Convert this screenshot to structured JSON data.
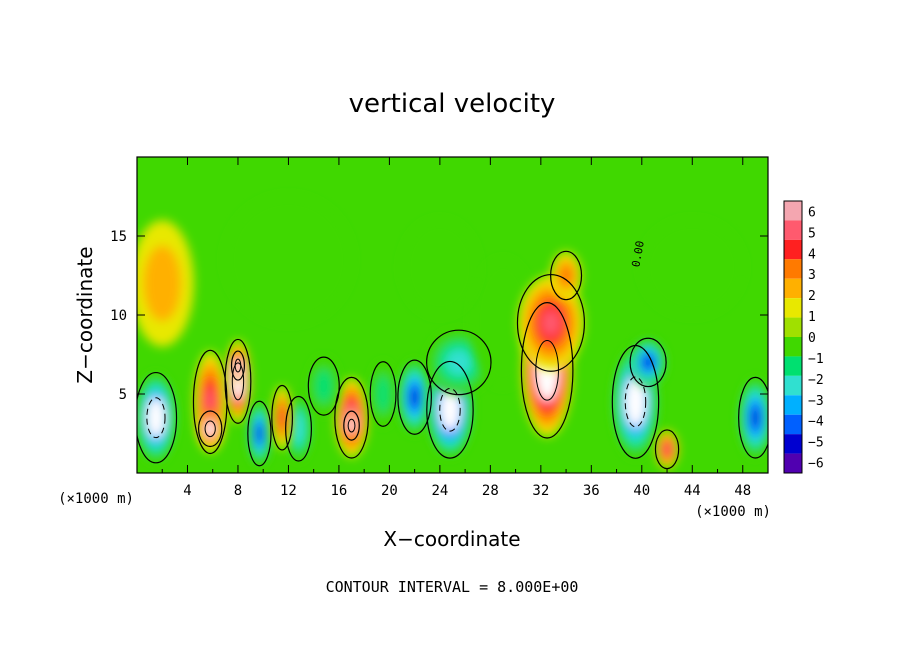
{
  "chart_data": {
    "type": "heatmap",
    "title": "vertical velocity",
    "xlabel": "X−coordinate",
    "ylabel": "Z−coordinate",
    "x_unit": "(×1000 m)",
    "xlim": [
      0,
      50
    ],
    "ylim": [
      0,
      20
    ],
    "x_ticks": [
      4,
      8,
      12,
      16,
      20,
      24,
      28,
      32,
      36,
      40,
      44,
      48
    ],
    "x_tick_labels": [
      "4",
      "8",
      "12",
      "16",
      "20",
      "24",
      "28",
      "32",
      "36",
      "40",
      "44",
      "48"
    ],
    "y_ticks": [
      5,
      10,
      15
    ],
    "y_tick_labels": [
      "5",
      "10",
      "15"
    ],
    "colorbar": {
      "min": -6,
      "max": 6,
      "tick_labels": [
        "6",
        "5",
        "4",
        "3",
        "2",
        "1",
        "0",
        "−1",
        "−2",
        "−3",
        "−4",
        "−5",
        "−6"
      ],
      "colors": [
        "#f4a6b0",
        "#ff5a6e",
        "#ff2020",
        "#ff7a00",
        "#ffb000",
        "#e8e800",
        "#a0e000",
        "#40d800",
        "#00e070",
        "#30e0d0",
        "#00b0ff",
        "#0060ff",
        "#0000d0",
        "#5000b0"
      ]
    },
    "cells": [
      {
        "x": 1.5,
        "z": 3.5,
        "w": -7,
        "sx": 1.6,
        "sz": 2.8
      },
      {
        "x": 5.8,
        "z": 4.5,
        "w": 5,
        "sx": 1.3,
        "sz": 3.2
      },
      {
        "x": 5.8,
        "z": 2.8,
        "w": 8,
        "sx": 0.9,
        "sz": 1.1
      },
      {
        "x": 8.0,
        "z": 5.8,
        "w": 6.5,
        "sx": 1.0,
        "sz": 2.6
      },
      {
        "x": 8.0,
        "z": 6.8,
        "w": 9,
        "sx": 0.5,
        "sz": 0.9
      },
      {
        "x": 9.7,
        "z": 2.5,
        "w": -6,
        "sx": 0.9,
        "sz": 2.0
      },
      {
        "x": 12.8,
        "z": 2.8,
        "w": -3.5,
        "sx": 1.0,
        "sz": 2.0
      },
      {
        "x": 11.5,
        "z": 3.5,
        "w": 3.5,
        "sx": 0.8,
        "sz": 2.0
      },
      {
        "x": 17.0,
        "z": 3.5,
        "w": 6,
        "sx": 1.3,
        "sz": 2.5
      },
      {
        "x": 17.0,
        "z": 3.0,
        "w": 9,
        "sx": 0.6,
        "sz": 0.9
      },
      {
        "x": 14.8,
        "z": 5.5,
        "w": -2,
        "sx": 1.2,
        "sz": 1.8
      },
      {
        "x": 19.5,
        "z": 5.0,
        "w": -2,
        "sx": 1.0,
        "sz": 2.0
      },
      {
        "x": 22.0,
        "z": 4.8,
        "w": -6,
        "sx": 1.3,
        "sz": 2.3
      },
      {
        "x": 24.8,
        "z": 4.0,
        "w": -8,
        "sx": 1.8,
        "sz": 3.0
      },
      {
        "x": 25.5,
        "z": 7.0,
        "w": -3,
        "sx": 2.5,
        "sz": 2.0
      },
      {
        "x": 29.0,
        "z": 9.5,
        "w": -1,
        "sx": 2.5,
        "sz": 4.0
      },
      {
        "x": 32.5,
        "z": 6.5,
        "w": 8,
        "sx": 2.0,
        "sz": 4.2
      },
      {
        "x": 32.8,
        "z": 9.5,
        "w": 4.5,
        "sx": 2.6,
        "sz": 3.0
      },
      {
        "x": 34.0,
        "z": 12.5,
        "w": 3,
        "sx": 1.2,
        "sz": 1.5
      },
      {
        "x": 39.5,
        "z": 4.5,
        "w": -7,
        "sx": 1.8,
        "sz": 3.5
      },
      {
        "x": 40.5,
        "z": 7.0,
        "w": -6,
        "sx": 1.4,
        "sz": 1.5
      },
      {
        "x": 42.0,
        "z": 1.5,
        "w": 5,
        "sx": 0.9,
        "sz": 1.2
      },
      {
        "x": 49.0,
        "z": 3.5,
        "w": -6,
        "sx": 1.3,
        "sz": 2.5
      },
      {
        "x": 44.0,
        "z": 13.0,
        "w": -1.2,
        "sx": 4.0,
        "sz": 3.0
      },
      {
        "x": 12.0,
        "z": 13.5,
        "w": -1.2,
        "sx": 5.0,
        "sz": 4.0
      },
      {
        "x": 24.0,
        "z": 13.0,
        "w": -1.5,
        "sx": 3.0,
        "sz": 3.0
      },
      {
        "x": 2.0,
        "z": 12.0,
        "w": 1.2,
        "sx": 2.5,
        "sz": 4.0
      }
    ],
    "contour_labels": [
      {
        "text": "0.00",
        "x": 39.8,
        "z": 13.0
      }
    ]
  },
  "footer": {
    "contour_interval": "CONTOUR INTERVAL = 8.000E+00"
  }
}
